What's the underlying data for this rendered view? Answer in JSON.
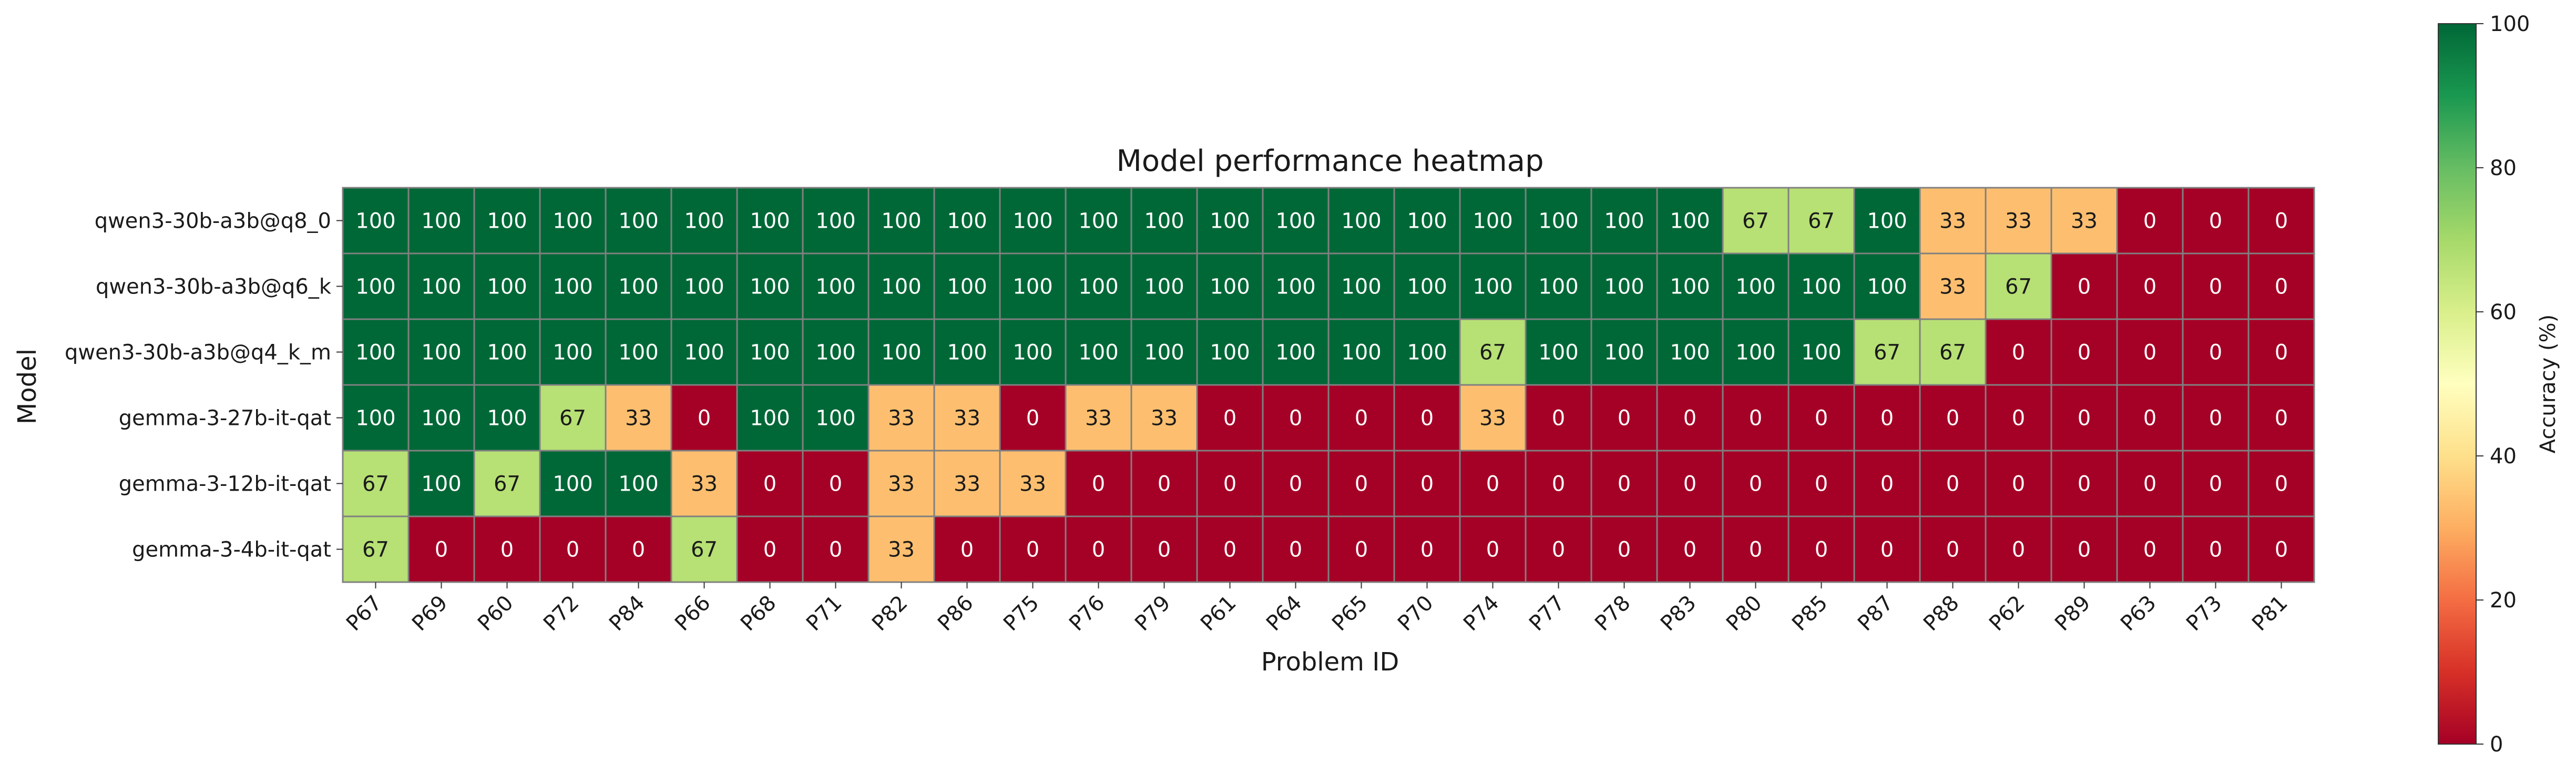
{
  "chart_data": {
    "type": "heatmap",
    "title": "Model performance heatmap",
    "xlabel": "Problem ID",
    "ylabel": "Model",
    "colorbar_label": "Accuracy (%)",
    "colorbar_range": [
      0,
      100
    ],
    "colorbar_ticks": [
      "0",
      "20",
      "40",
      "60",
      "80",
      "100"
    ],
    "colormap": "RdYlGn",
    "x_categories": [
      "P67",
      "P69",
      "P60",
      "P72",
      "P84",
      "P66",
      "P68",
      "P71",
      "P82",
      "P86",
      "P75",
      "P76",
      "P79",
      "P61",
      "P64",
      "P65",
      "P70",
      "P74",
      "P77",
      "P78",
      "P83",
      "P80",
      "P85",
      "P87",
      "P88",
      "P62",
      "P89",
      "P63",
      "P73",
      "P81"
    ],
    "y_categories": [
      "qwen3-30b-a3b@q8_0",
      "qwen3-30b-a3b@q6_k",
      "qwen3-30b-a3b@q4_k_m",
      "gemma-3-27b-it-qat",
      "gemma-3-12b-it-qat",
      "gemma-3-4b-it-qat"
    ],
    "values": [
      [
        100,
        100,
        100,
        100,
        100,
        100,
        100,
        100,
        100,
        100,
        100,
        100,
        100,
        100,
        100,
        100,
        100,
        100,
        100,
        100,
        100,
        67,
        67,
        100,
        33,
        33,
        33,
        0,
        0,
        0
      ],
      [
        100,
        100,
        100,
        100,
        100,
        100,
        100,
        100,
        100,
        100,
        100,
        100,
        100,
        100,
        100,
        100,
        100,
        100,
        100,
        100,
        100,
        100,
        100,
        100,
        33,
        67,
        0,
        0,
        0,
        0
      ],
      [
        100,
        100,
        100,
        100,
        100,
        100,
        100,
        100,
        100,
        100,
        100,
        100,
        100,
        100,
        100,
        100,
        100,
        67,
        100,
        100,
        100,
        100,
        100,
        67,
        67,
        0,
        0,
        0,
        0,
        0
      ],
      [
        100,
        100,
        100,
        67,
        33,
        0,
        100,
        100,
        33,
        33,
        0,
        33,
        33,
        0,
        0,
        0,
        0,
        33,
        0,
        0,
        0,
        0,
        0,
        0,
        0,
        0,
        0,
        0,
        0,
        0
      ],
      [
        67,
        100,
        67,
        100,
        100,
        33,
        0,
        0,
        33,
        33,
        33,
        0,
        0,
        0,
        0,
        0,
        0,
        0,
        0,
        0,
        0,
        0,
        0,
        0,
        0,
        0,
        0,
        0,
        0,
        0
      ],
      [
        67,
        0,
        0,
        0,
        0,
        67,
        0,
        0,
        33,
        0,
        0,
        0,
        0,
        0,
        0,
        0,
        0,
        0,
        0,
        0,
        0,
        0,
        0,
        0,
        0,
        0,
        0,
        0,
        0,
        0
      ]
    ],
    "colors": {
      "v100": "#006837",
      "v67": "#b7e075",
      "v33": "#fdbf6f",
      "v0": "#a50026",
      "grid": "#808080"
    }
  }
}
